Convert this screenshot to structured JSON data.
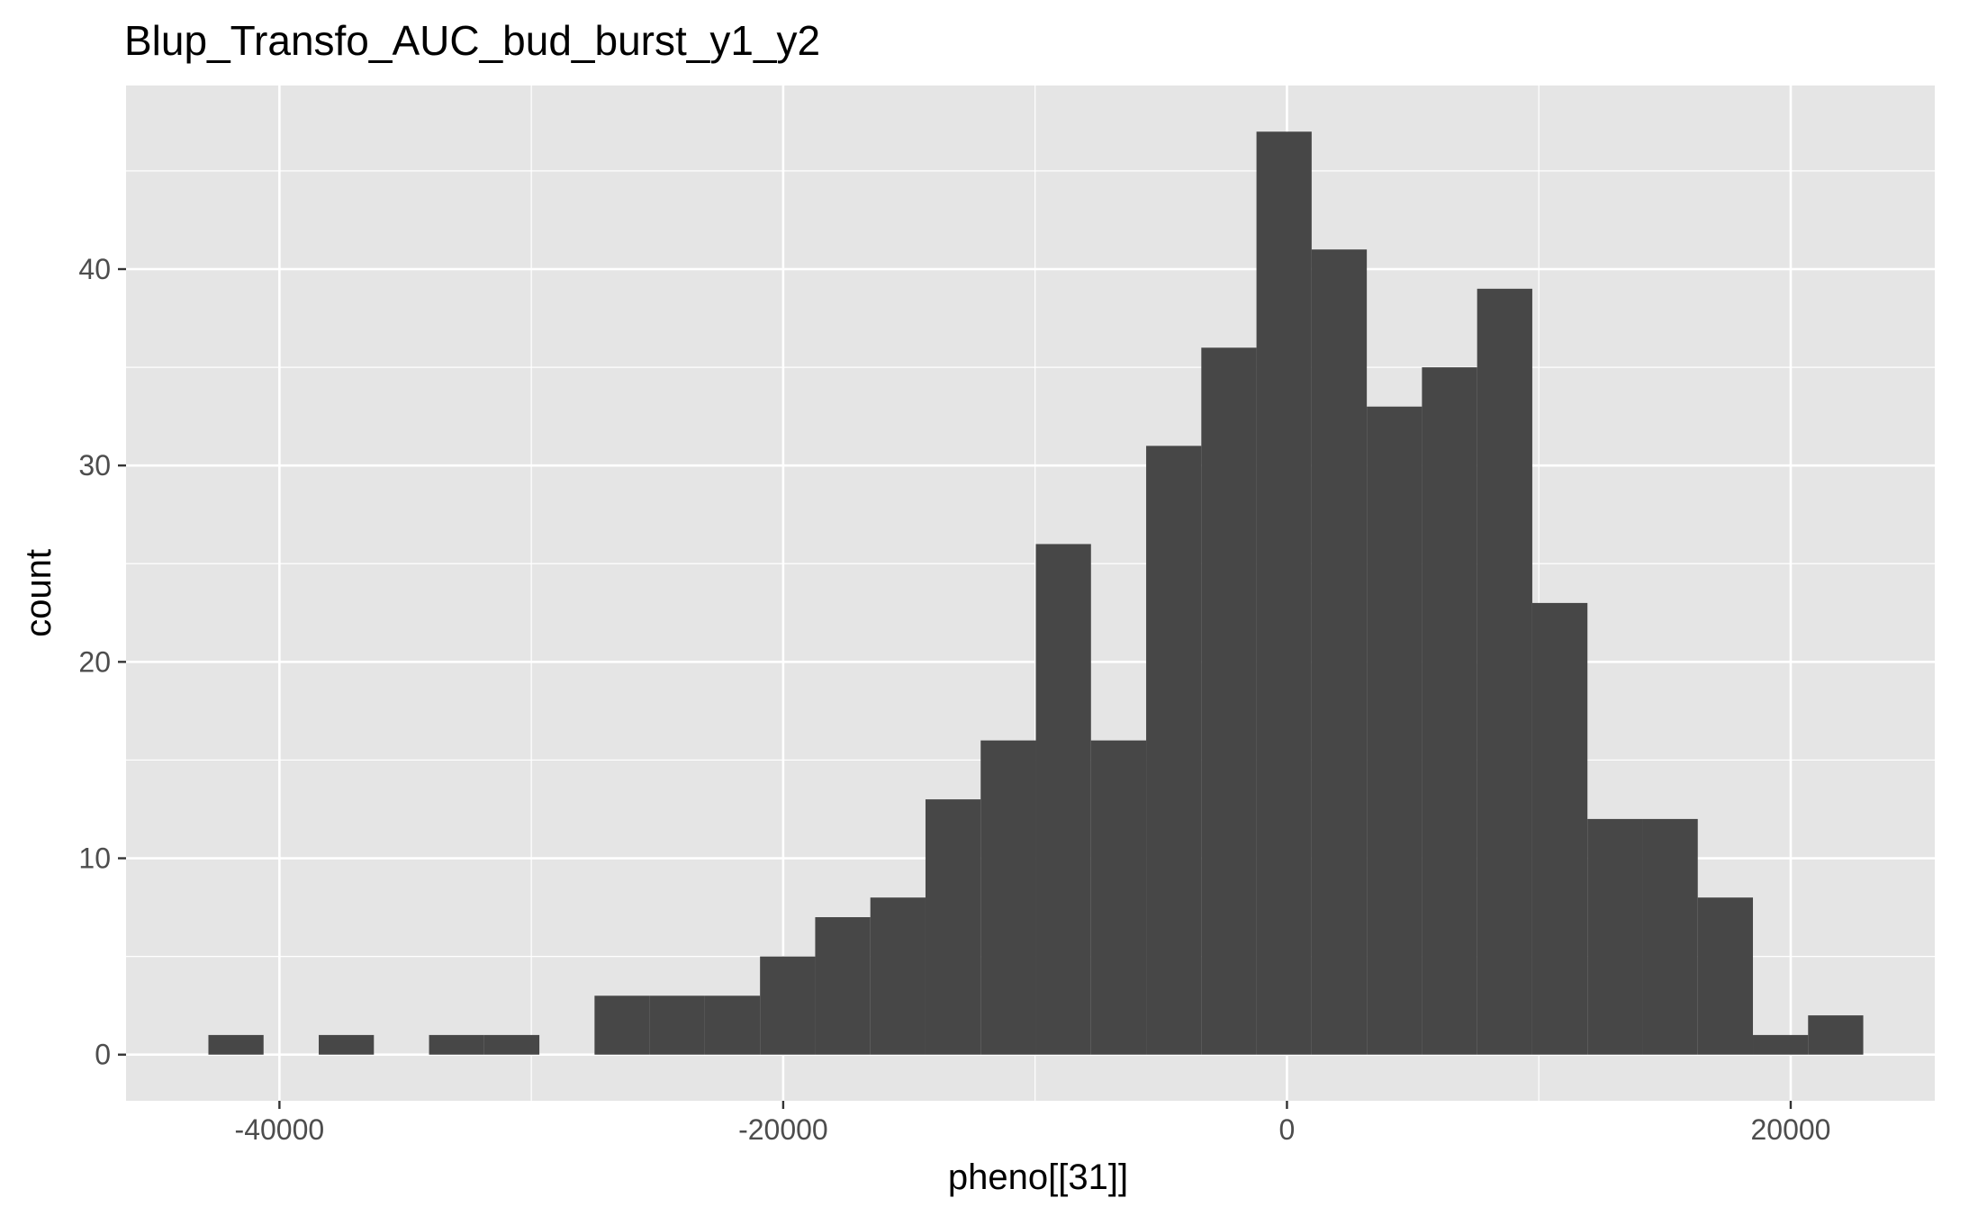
{
  "chart_data": {
    "type": "bar",
    "title": "Blup_Transfo_AUC_bud_burst_y1_y2",
    "xlabel": "pheno[[31]]",
    "ylabel": "count",
    "xlim": [
      -46090,
      25720
    ],
    "ylim": [
      -2.35,
      49.35
    ],
    "x_ticks": [
      -40000,
      -20000,
      0,
      20000
    ],
    "x_tick_labels": [
      "-40000",
      "-20000",
      "0",
      "20000"
    ],
    "y_ticks": [
      0,
      10,
      20,
      30,
      40
    ],
    "y_tick_labels": [
      "0",
      "10",
      "20",
      "30",
      "40"
    ],
    "bin_edges": [
      -42820,
      -40630,
      -38440,
      -36250,
      -34060,
      -31870,
      -29680,
      -27490,
      -25300,
      -23110,
      -20920,
      -18730,
      -16540,
      -14350,
      -12160,
      -9970,
      -7780,
      -5590,
      -3400,
      -1210,
      980,
      3170,
      5360,
      7550,
      9740,
      11930,
      14120,
      16310,
      18500,
      20690,
      22880
    ],
    "values": [
      1,
      0,
      1,
      0,
      1,
      1,
      0,
      3,
      3,
      3,
      5,
      7,
      8,
      13,
      16,
      26,
      16,
      31,
      36,
      47,
      41,
      33,
      35,
      39,
      23,
      12,
      12,
      8,
      1,
      2
    ],
    "bar_color": "#474747",
    "panel_background": "#e5e5e5",
    "grid": true,
    "grid_color": "#ffffff",
    "legend": "none"
  }
}
